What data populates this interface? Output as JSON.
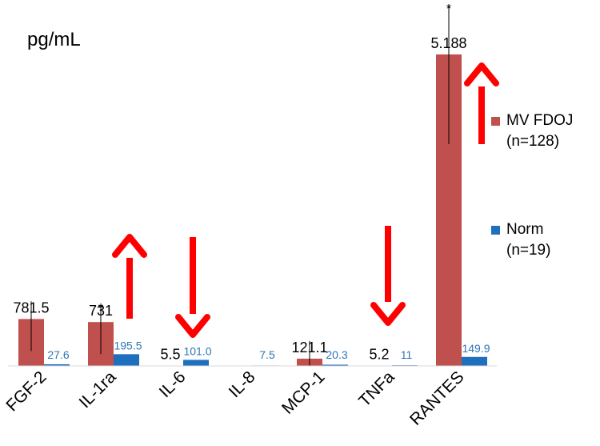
{
  "chart_data": {
    "type": "bar",
    "unit_label": "pg/mL",
    "categories": [
      "FGF-2",
      "IL-1ra",
      "IL-6",
      "IL-8",
      "MCP-1",
      "TNFa",
      "RANTES"
    ],
    "series": [
      {
        "name": "MV FDOJ\n(n=128)",
        "color": "#c0504d",
        "values": [
          781.5,
          731,
          5.5,
          0,
          121.1,
          5.2,
          5188
        ],
        "labels": [
          "781.5",
          "731",
          "5.5",
          "",
          "121.1",
          "5.2",
          "5.188"
        ],
        "label_color": "#000000"
      },
      {
        "name": "Norm\n(n=19)",
        "color": "#1f6fbf",
        "values": [
          27.6,
          195.5,
          101.0,
          7.5,
          20.3,
          11,
          149.9
        ],
        "labels": [
          "27.6",
          "195.5",
          "101.0",
          "7.5",
          "20.3",
          "11",
          "149.9"
        ],
        "label_color": "#2e75b6"
      }
    ],
    "significance": [
      "",
      "*",
      "",
      "",
      "",
      "",
      "*"
    ],
    "trend_arrows": [
      "",
      "up",
      "down",
      "",
      "",
      "down",
      "up"
    ],
    "arrow_color": "#ff0000",
    "ylim": [
      0,
      5188
    ],
    "grid": false,
    "legend_position": "right"
  }
}
